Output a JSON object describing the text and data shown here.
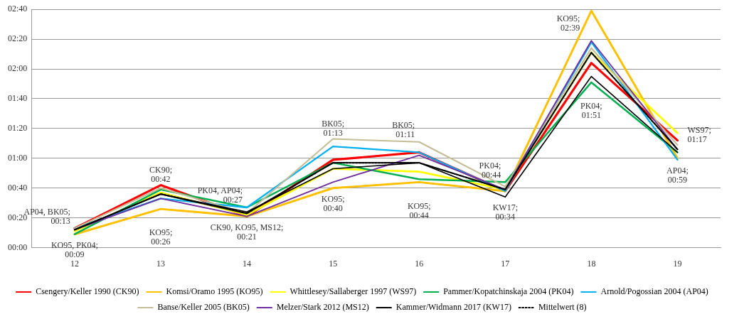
{
  "chart_data": {
    "type": "line",
    "categories": [
      "12",
      "13",
      "14",
      "15",
      "16",
      "17",
      "18",
      "19"
    ],
    "series": [
      {
        "name": "Csengery/Keller 1990 (CK90)",
        "color": "#ff0000",
        "values": [
          13,
          42,
          21,
          59,
          64,
          38,
          124,
          72
        ]
      },
      {
        "name": "Komsi/Oramo 1995 (KO95)",
        "color": "#ffc000",
        "values": [
          9,
          26,
          21,
          40,
          44,
          38,
          159,
          60
        ]
      },
      {
        "name": "Whittlesey/Sallaberger 1997 (WS97)",
        "color": "#ffff00",
        "values": [
          11,
          37,
          22,
          53,
          51,
          39,
          131,
          77
        ]
      },
      {
        "name": "Pammer/Kopatchinskaja 2004 (PK04)",
        "color": "#00b050",
        "values": [
          9,
          39,
          27,
          57,
          46,
          44,
          111,
          64
        ]
      },
      {
        "name": "Arnold/Pogossian 2004 (AP04)",
        "color": "#00b0f0",
        "values": [
          13,
          33,
          27,
          68,
          64,
          38,
          138,
          59
        ]
      },
      {
        "name": "Banse/Keller 2005 (BK05)",
        "color": "#c4bd97",
        "values": [
          13,
          40,
          23,
          73,
          71,
          41,
          134,
          69
        ]
      },
      {
        "name": "Melzer/Stark 2012 (MS12)",
        "color": "#7030a0",
        "values": [
          12,
          33,
          21,
          44,
          62,
          39,
          139,
          66
        ]
      },
      {
        "name": "Kammer/Widmann 2017 (KW17)",
        "color": "#000000",
        "values": [
          12,
          36,
          24,
          53,
          57,
          34,
          115,
          64
        ]
      },
      {
        "name": "Mittelwert (8)",
        "color": "#000000",
        "line_style": "dotted",
        "values": [
          12,
          36,
          23,
          57,
          57,
          39,
          131,
          66
        ]
      }
    ],
    "ylim": [
      0,
      160
    ],
    "yticks": [
      {
        "value": 0,
        "label": "00:00"
      },
      {
        "value": 20,
        "label": "00:20"
      },
      {
        "value": 40,
        "label": "00:40"
      },
      {
        "value": 60,
        "label": "01:00"
      },
      {
        "value": 80,
        "label": "01:20"
      },
      {
        "value": 100,
        "label": "01:40"
      },
      {
        "value": 120,
        "label": "02:00"
      },
      {
        "value": 140,
        "label": "02:20"
      },
      {
        "value": 160,
        "label": "02:40"
      }
    ],
    "grid": "y",
    "legend": "bottom",
    "marker": "none",
    "line_style": "solid",
    "annotations": [
      {
        "text": "AP04, BK05;\n00:13",
        "x": "12",
        "y": 13
      },
      {
        "text": "KO95, PK04;\n00:09",
        "x": "12",
        "y": 9
      },
      {
        "text": "CK90;\n00:42",
        "x": "13",
        "y": 42
      },
      {
        "text": "KO95;\n00:26",
        "x": "13",
        "y": 26
      },
      {
        "text": "PK04, AP04;\n00:27",
        "x": "14",
        "y": 27
      },
      {
        "text": "CK90, KO95, MS12;\n00:21",
        "x": "14",
        "y": 21
      },
      {
        "text": "BK05;\n01:13",
        "x": "15",
        "y": 73
      },
      {
        "text": "KO95;\n00:40",
        "x": "15",
        "y": 40
      },
      {
        "text": "BK05;\n01:11",
        "x": "16",
        "y": 71
      },
      {
        "text": "KO95;\n00:44",
        "x": "16",
        "y": 44
      },
      {
        "text": "PK04;\n00:44",
        "x": "17",
        "y": 44
      },
      {
        "text": "KW17;\n00:34",
        "x": "17",
        "y": 34
      },
      {
        "text": "KO95;\n02:39",
        "x": "18",
        "y": 159
      },
      {
        "text": "PK04;\n01:51",
        "x": "18",
        "y": 111
      },
      {
        "text": "WS97;\n01:17",
        "x": "19",
        "y": 77
      },
      {
        "text": "AP04;\n00:59",
        "x": "19",
        "y": 59
      }
    ]
  }
}
